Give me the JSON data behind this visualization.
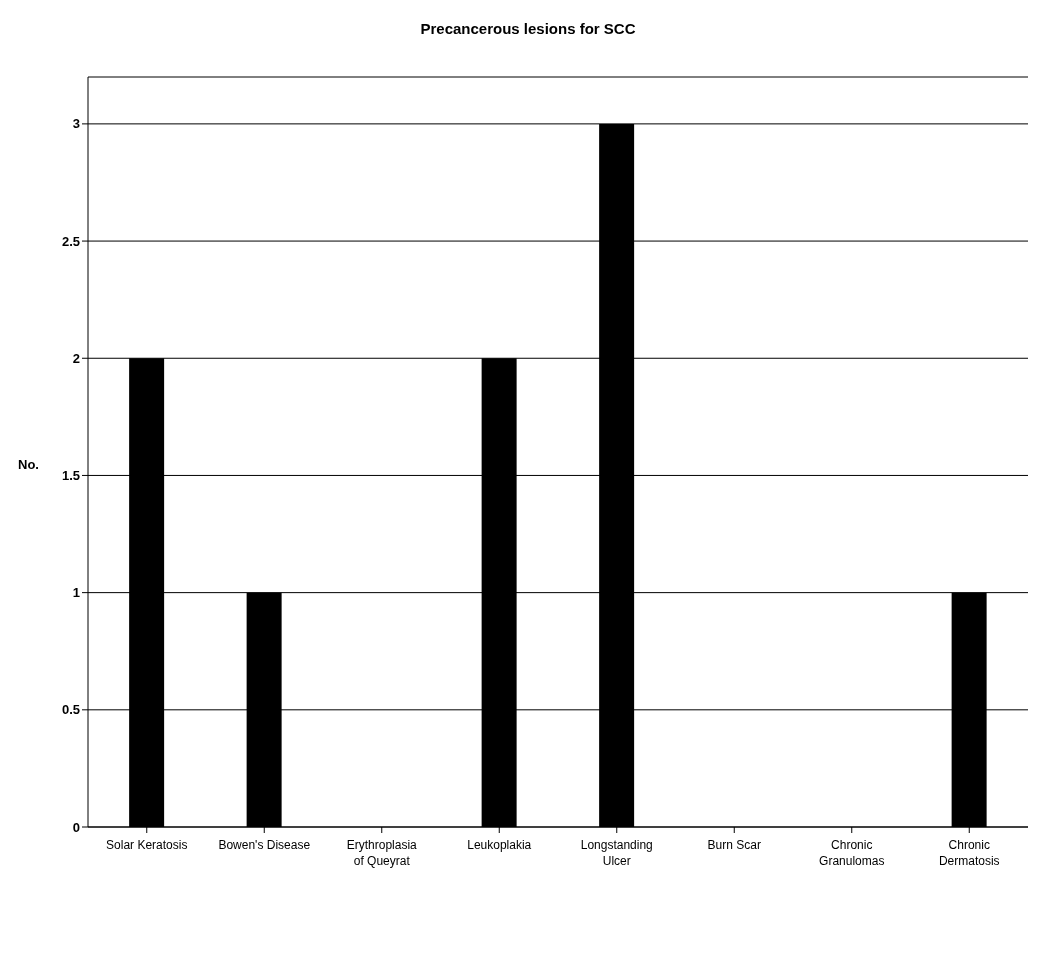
{
  "chart_data": {
    "type": "bar",
    "title": "Precancerous lesions for SCC",
    "ylabel": "No.",
    "categories": [
      "Solar Keratosis",
      "Bowen's Disease",
      "Erythroplasia of Queyrat",
      "Leukoplakia",
      "Longstanding Ulcer",
      "Burn Scar",
      "Chronic Granulomas",
      "Chronic Dermatosis"
    ],
    "values": [
      2,
      1,
      0,
      2,
      3,
      0,
      0,
      1
    ],
    "color": "#000000",
    "ylim": [
      0,
      3.2
    ],
    "yticks": [
      0,
      0.5,
      1,
      1.5,
      2,
      2.5,
      3
    ],
    "grid": "y"
  }
}
